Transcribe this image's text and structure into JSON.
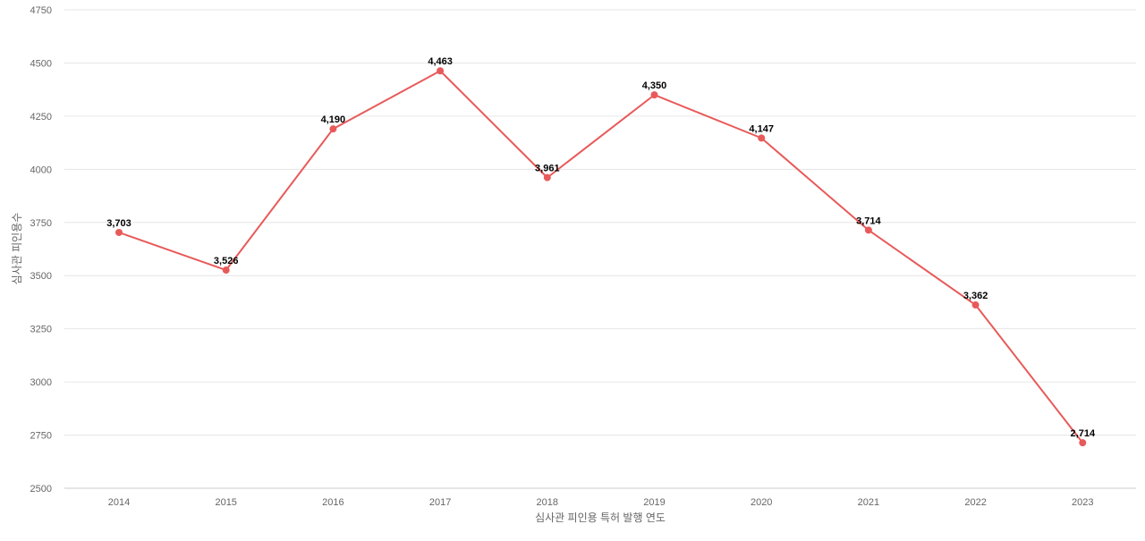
{
  "chart_data": {
    "type": "line",
    "title": "",
    "xlabel": "심사관 피인용 특허 발행 연도",
    "ylabel": "심사관 피인용수",
    "x": [
      "2014",
      "2015",
      "2016",
      "2017",
      "2018",
      "2019",
      "2020",
      "2021",
      "2022",
      "2023"
    ],
    "series": [
      {
        "values": [
          3703,
          3526,
          4190,
          4463,
          3961,
          4350,
          4147,
          3714,
          3362,
          2714
        ],
        "labels": [
          "3,703",
          "3,526",
          "4,190",
          "4,463",
          "3,961",
          "4,350",
          "4,147",
          "3,714",
          "3,362",
          "2,714"
        ],
        "color": "#e85a5a"
      }
    ],
    "ylim": [
      2500,
      4750
    ],
    "yticks": [
      "2500",
      "2750",
      "3000",
      "3250",
      "3500",
      "3750",
      "4000",
      "4250",
      "4500",
      "4750"
    ],
    "grid": true,
    "legend": "none"
  }
}
